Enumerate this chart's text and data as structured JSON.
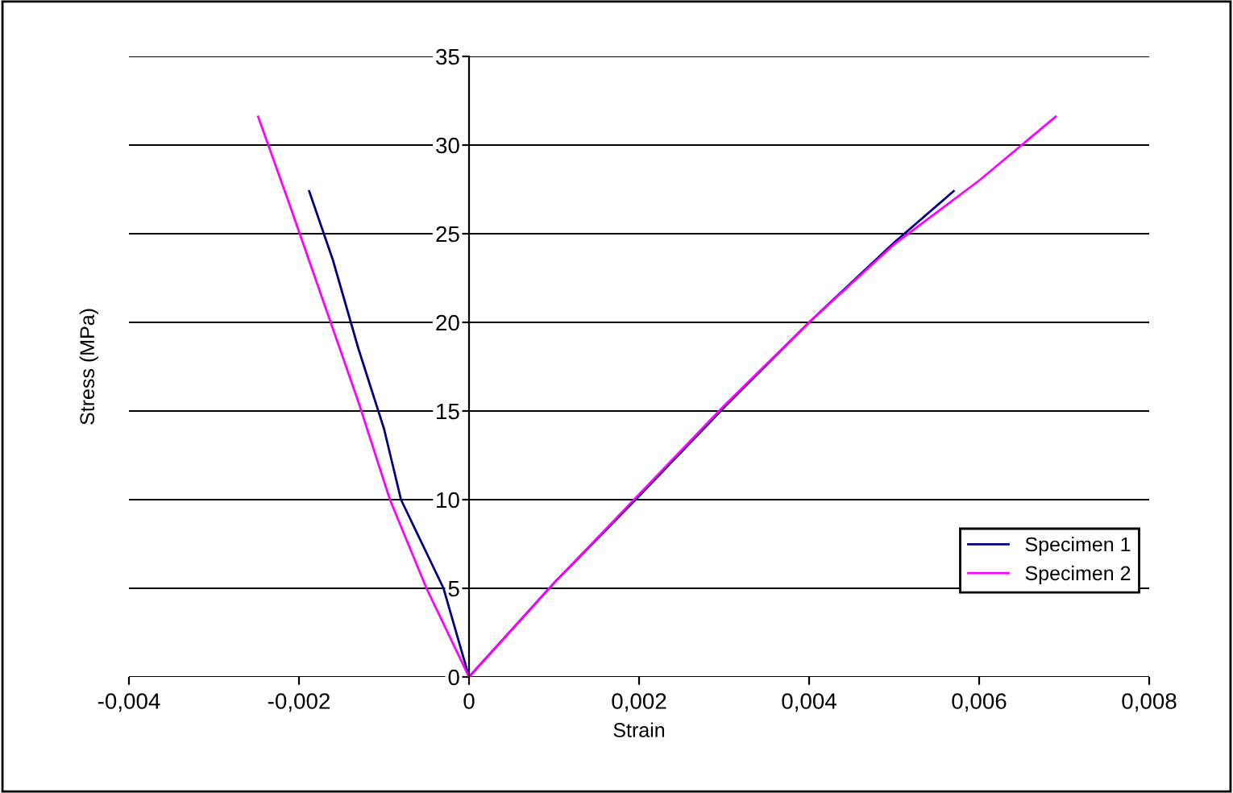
{
  "chart_data": {
    "type": "line",
    "xlabel": "Strain",
    "ylabel": "Stress (MPa)",
    "xlim": [
      -0.004,
      0.008
    ],
    "ylim": [
      0,
      35
    ],
    "xticks": [
      {
        "value": -0.004,
        "label": "-0,004"
      },
      {
        "value": -0.002,
        "label": "-0,002"
      },
      {
        "value": 0,
        "label": "0"
      },
      {
        "value": 0.002,
        "label": "0,002"
      },
      {
        "value": 0.004,
        "label": "0,004"
      },
      {
        "value": 0.006,
        "label": "0,006"
      },
      {
        "value": 0.008,
        "label": "0,008"
      }
    ],
    "yticks": [
      0,
      5,
      10,
      15,
      20,
      25,
      30,
      35
    ],
    "grid": "y",
    "legend": "bottom right",
    "marker": "none",
    "line_style": "solid",
    "series": [
      {
        "name": "Specimen 1",
        "color": "#000080",
        "x": [
          -0.00188,
          -0.0016,
          -0.0013,
          -0.001,
          -0.0008,
          -0.0005,
          -0.0003,
          0,
          0.001,
          0.002,
          0.003,
          0.004,
          0.005,
          0.0057
        ],
        "values": [
          27.4,
          23.5,
          18.5,
          14,
          10,
          7,
          5,
          0,
          5.3,
          10.2,
          15.2,
          20,
          24.5,
          27.4
        ]
      },
      {
        "name": "Specimen 2",
        "color": "#ff00ff",
        "x": [
          -0.00248,
          -0.0021,
          -0.0017,
          -0.0013,
          -0.00093,
          -0.0005,
          0,
          0.001,
          0.002,
          0.003,
          0.004,
          0.005,
          0.006,
          0.0069
        ],
        "values": [
          31.6,
          26.5,
          21,
          15.5,
          10,
          5,
          0,
          5.3,
          10.3,
          15.3,
          20,
          24.4,
          28,
          31.6
        ]
      }
    ]
  }
}
